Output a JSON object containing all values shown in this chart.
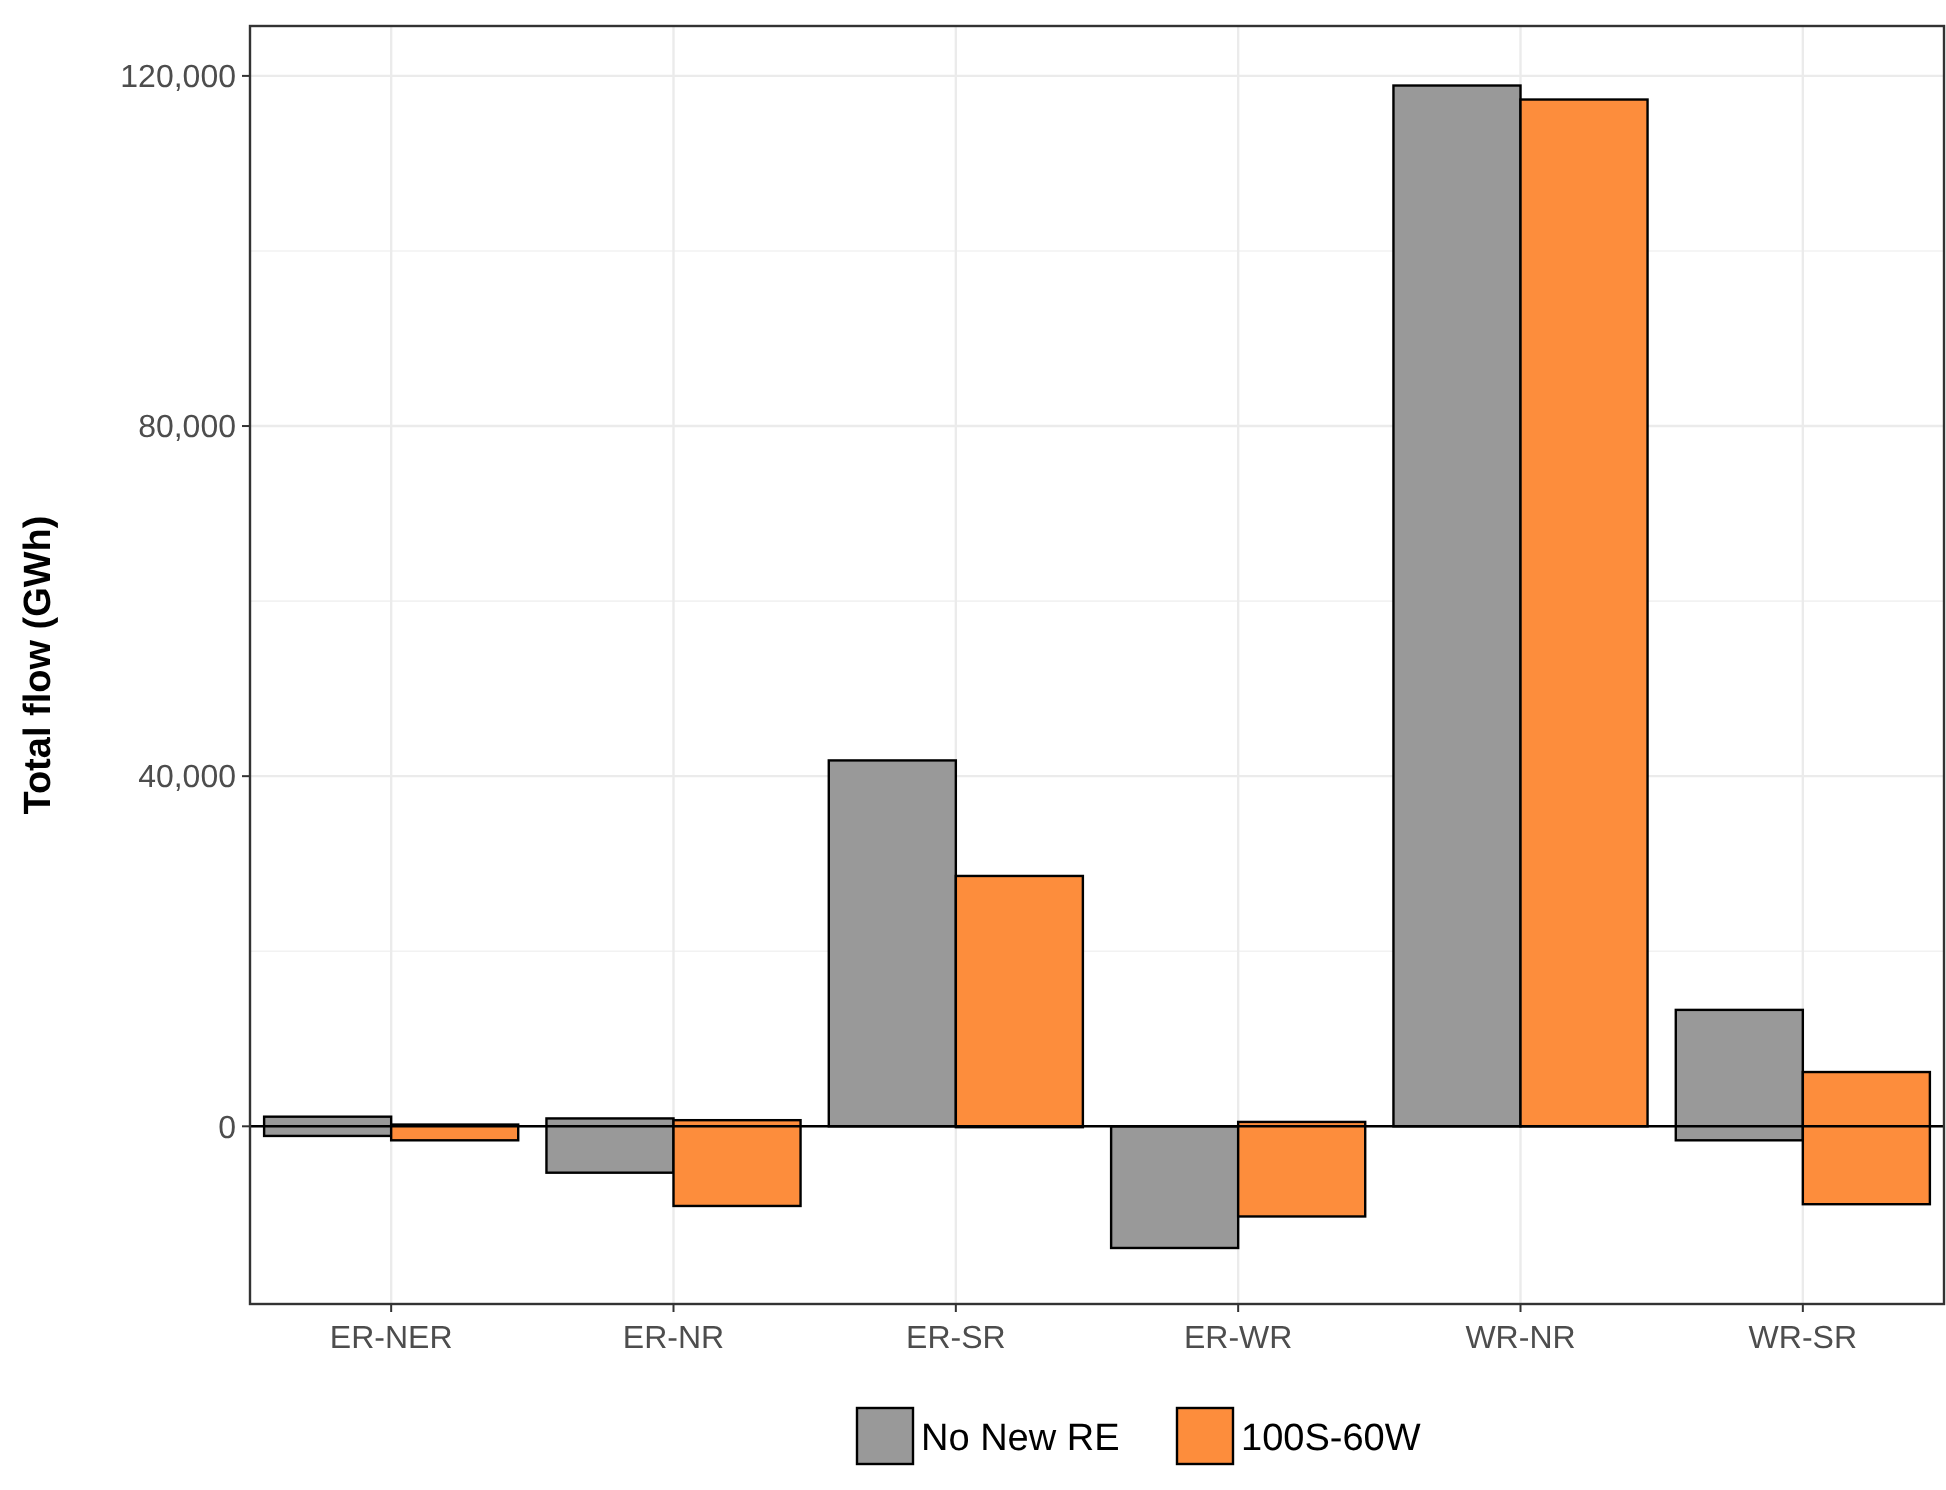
{
  "chart_data": {
    "type": "bar",
    "ylabel": "Total flow (GWh)",
    "categories": [
      "ER-NER",
      "ER-NR",
      "ER-SR",
      "ER-WR",
      "WR-NR",
      "WR-SR"
    ],
    "series": [
      {
        "name": "No New RE",
        "color": "#999999",
        "base": [
          -1100,
          -5300,
          0,
          -13900,
          0,
          -1600
        ],
        "values": [
          2200,
          6200,
          41800,
          13900,
          118900,
          14900
        ]
      },
      {
        "name": "100S-60W",
        "color": "#fd8d3c",
        "base": [
          -1600,
          -9100,
          -100,
          -10300,
          0,
          -8900
        ],
        "values": [
          1800,
          9800,
          28700,
          10800,
          117300,
          15100
        ]
      }
    ],
    "ylim": [
      -20300,
      125700
    ],
    "yticks": [
      {
        "value": 0,
        "label": "0"
      },
      {
        "value": 40000,
        "label": "40,000"
      },
      {
        "value": 80000,
        "label": "80,000"
      },
      {
        "value": 120000,
        "label": "120,000"
      }
    ],
    "ref_lines": [
      {
        "axis": "y",
        "value": 0,
        "color": "#000000"
      }
    ],
    "grid": true,
    "legend": "bottom"
  }
}
